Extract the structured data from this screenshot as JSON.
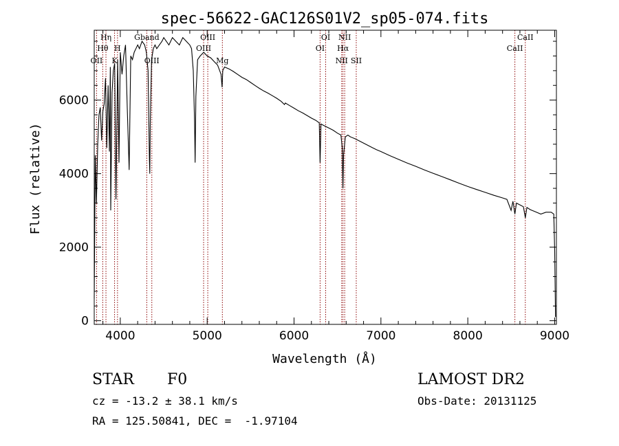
{
  "title": "spec-56622-GAC126S01V2_sp05-074.fits",
  "chart_data": {
    "type": "line",
    "title": "spec-56622-GAC126S01V2_sp05-074.fits",
    "xlabel": "Wavelength (Å)",
    "ylabel": "Flux (relative)",
    "xlim": [
      3700,
      9020
    ],
    "ylim": [
      -100,
      7900
    ],
    "x_ticks": [
      4000,
      5000,
      6000,
      7000,
      8000,
      9000
    ],
    "y_ticks": [
      0,
      2000,
      4000,
      6000
    ],
    "grid": false,
    "series": [
      {
        "x": [
          3700,
          3712,
          3725,
          3740,
          3755,
          3770,
          3785,
          3800,
          3815,
          3830,
          3845,
          3860,
          3875,
          3885,
          3890,
          3905,
          3920,
          3935,
          3950,
          3970,
          3985,
          4000,
          4020,
          4040,
          4060,
          4080,
          4102,
          4120,
          4140,
          4160,
          4180,
          4200,
          4220,
          4250,
          4280,
          4300,
          4320,
          4335,
          4340,
          4345,
          4360,
          4380,
          4400,
          4420,
          4450,
          4480,
          4500,
          4530,
          4560,
          4600,
          4640,
          4680,
          4720,
          4760,
          4800,
          4820,
          4840,
          4855,
          4861,
          4870,
          4890,
          4920,
          4960,
          5000,
          5040,
          5080,
          5120,
          5160,
          5172,
          5180,
          5200,
          5250,
          5300,
          5350,
          5400,
          5450,
          5500,
          5550,
          5600,
          5650,
          5700,
          5750,
          5800,
          5850,
          5890,
          5900,
          5950,
          6000,
          6050,
          6100,
          6150,
          6200,
          6250,
          6290,
          6300,
          6310,
          6350,
          6400,
          6450,
          6500,
          6540,
          6555,
          6563,
          6570,
          6590,
          6620,
          6650,
          6700,
          6750,
          6800,
          6850,
          6900,
          6950,
          7000,
          7100,
          7200,
          7300,
          7400,
          7500,
          7600,
          7700,
          7800,
          7900,
          8000,
          8100,
          8200,
          8300,
          8400,
          8450,
          8498,
          8520,
          8542,
          8560,
          8600,
          8640,
          8662,
          8680,
          8720,
          8780,
          8840,
          8900,
          8960,
          8990,
          9000,
          9010
        ],
        "y": [
          600,
          4500,
          3200,
          4800,
          5600,
          5800,
          4900,
          5700,
          5900,
          6600,
          4700,
          6400,
          4600,
          6900,
          3000,
          6200,
          6800,
          7000,
          3300,
          7100,
          4300,
          7300,
          6700,
          7200,
          7500,
          5800,
          4100,
          7200,
          7100,
          7300,
          7400,
          7500,
          7400,
          7600,
          7500,
          7300,
          6800,
          4400,
          4000,
          5400,
          7100,
          7400,
          7500,
          7400,
          7500,
          7600,
          7700,
          7600,
          7500,
          7700,
          7600,
          7500,
          7700,
          7600,
          7500,
          7400,
          6800,
          5400,
          4300,
          6100,
          7100,
          7200,
          7300,
          7200,
          7150,
          7050,
          6950,
          6700,
          6350,
          6800,
          6900,
          6850,
          6780,
          6700,
          6620,
          6560,
          6480,
          6400,
          6320,
          6250,
          6190,
          6120,
          6050,
          5970,
          5880,
          5920,
          5850,
          5780,
          5710,
          5650,
          5580,
          5510,
          5450,
          5380,
          4300,
          5350,
          5300,
          5240,
          5180,
          5100,
          5050,
          4700,
          3600,
          4500,
          5000,
          5050,
          5000,
          4950,
          4890,
          4830,
          4770,
          4710,
          4650,
          4600,
          4490,
          4390,
          4290,
          4200,
          4100,
          4010,
          3920,
          3830,
          3740,
          3650,
          3570,
          3490,
          3410,
          3340,
          3300,
          3000,
          3250,
          2900,
          3200,
          3150,
          3100,
          2800,
          3080,
          3020,
          2960,
          2900,
          2950,
          2950,
          2900,
          1900,
          100
        ]
      }
    ],
    "lines": [
      {
        "label": "OII",
        "wavelength": 3727
      },
      {
        "label": "Hθ",
        "wavelength": 3798
      },
      {
        "label": "Hη",
        "wavelength": 3835
      },
      {
        "label": "K",
        "wavelength": 3934
      },
      {
        "label": "H",
        "wavelength": 3968
      },
      {
        "label": "Gband",
        "wavelength": 4305
      },
      {
        "label": "OIII",
        "wavelength": 4363
      },
      {
        "label": "OIII",
        "wavelength": 4959
      },
      {
        "label": "OIII",
        "wavelength": 5007
      },
      {
        "label": "Mg",
        "wavelength": 5175
      },
      {
        "label": "OI",
        "wavelength": 6300
      },
      {
        "label": "OI",
        "wavelength": 6364
      },
      {
        "label": "NII",
        "wavelength": 6548
      },
      {
        "label": "Hα",
        "wavelength": 6563
      },
      {
        "label": "NII",
        "wavelength": 6583
      },
      {
        "label": "SII",
        "wavelength": 6716
      },
      {
        "label": "CaII",
        "wavelength": 8542
      },
      {
        "label": "CaII",
        "wavelength": 8662
      }
    ],
    "line_color": "#8b0000",
    "line_style": "dotted"
  },
  "footer": {
    "object_class": "STAR",
    "subclass": "F0",
    "redshift_text": "cz = -13.2 ± 38.1 km/s",
    "coords_text": "RA = 125.50841, DEC =  -1.97104",
    "survey": "LAMOST DR2",
    "obs_date": "Obs-Date: 20131125"
  }
}
